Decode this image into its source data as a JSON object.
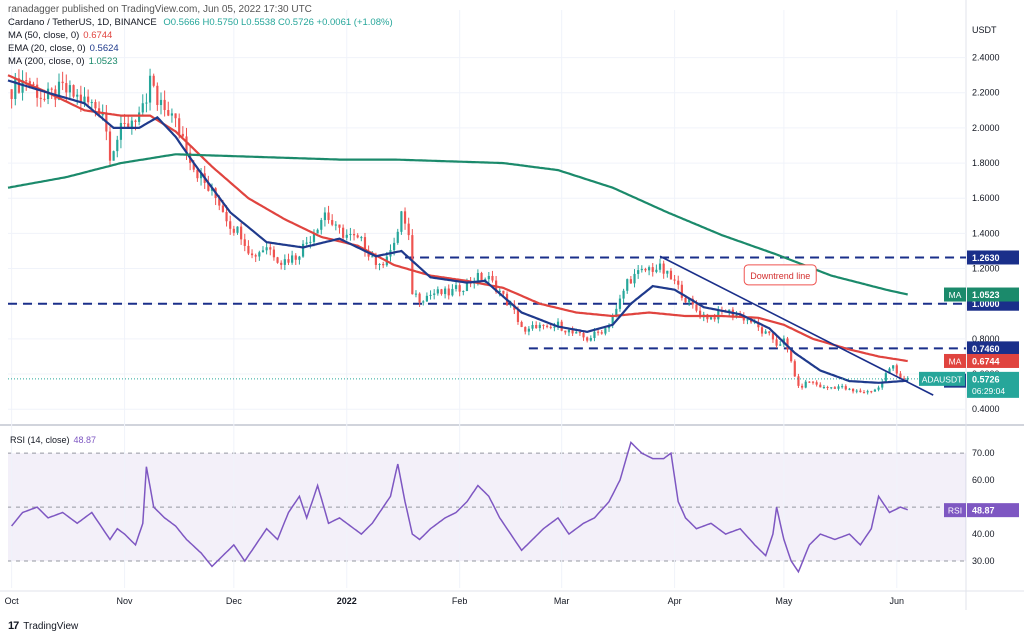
{
  "header": {
    "publisher": "ranadagger published on TradingView.com, Jun 05, 2022 17:30 UTC",
    "symbol": "Cardano / TetherUS, 1D, BINANCE",
    "ohlc": "O0.5666 H0.5750 L0.5538 C0.5726 +0.0061 (+1.08%)",
    "ma50_label": "MA (50, close, 0)",
    "ma50_value": "0.6744",
    "ema_label": "EMA (20, close, 0)",
    "ema_value": "0.5624",
    "ma200_label": "MA (200, close, 0)",
    "ma200_value": "1.0523"
  },
  "footer": {
    "logo_text": "TradingView",
    "logo_mark": "17"
  },
  "chart_data": {
    "type": "candlestick",
    "currency": "USDT",
    "price_axis": {
      "range": [
        0.35,
        2.5
      ],
      "ticks": [
        "2.4000",
        "2.2000",
        "2.0000",
        "1.8000",
        "1.6000",
        "1.4000",
        "1.2000",
        "1.0000",
        "0.8000",
        "0.6000",
        "0.4000"
      ]
    },
    "rsi_axis": {
      "range": [
        20,
        76
      ],
      "ticks": [
        "70.00",
        "60.00",
        "50.00",
        "40.00",
        "30.00"
      ]
    },
    "x_labels": [
      {
        "label": "Oct",
        "day": 0
      },
      {
        "label": "Nov",
        "day": 31
      },
      {
        "label": "Dec",
        "day": 61
      },
      {
        "label": "2022",
        "day": 92
      },
      {
        "label": "Feb",
        "day": 123
      },
      {
        "label": "Mar",
        "day": 151
      },
      {
        "label": "Apr",
        "day": 182
      },
      {
        "label": "May",
        "day": 212
      },
      {
        "label": "Jun",
        "day": 243
      }
    ],
    "day_range": [
      -1,
      262
    ],
    "price_keyframes": [
      [
        0,
        2.22
      ],
      [
        4,
        2.28
      ],
      [
        9,
        2.16
      ],
      [
        14,
        2.22
      ],
      [
        20,
        2.15
      ],
      [
        25,
        2.1
      ],
      [
        27,
        1.86
      ],
      [
        30,
        1.98
      ],
      [
        33,
        2.05
      ],
      [
        35,
        2.08
      ],
      [
        37,
        2.1
      ],
      [
        38,
        2.3
      ],
      [
        40,
        2.12
      ],
      [
        43,
        2.1
      ],
      [
        47,
        1.95
      ],
      [
        50,
        1.78
      ],
      [
        54,
        1.65
      ],
      [
        57,
        1.58
      ],
      [
        60,
        1.45
      ],
      [
        63,
        1.4
      ],
      [
        66,
        1.27
      ],
      [
        70,
        1.33
      ],
      [
        74,
        1.24
      ],
      [
        78,
        1.27
      ],
      [
        82,
        1.38
      ],
      [
        86,
        1.52
      ],
      [
        89,
        1.42
      ],
      [
        93,
        1.38
      ],
      [
        96,
        1.35
      ],
      [
        99,
        1.27
      ],
      [
        101,
        1.2
      ],
      [
        103,
        1.29
      ],
      [
        105,
        1.32
      ],
      [
        107,
        1.52
      ],
      [
        109,
        1.36
      ],
      [
        110,
        1.07
      ],
      [
        112,
        1.03
      ],
      [
        116,
        1.06
      ],
      [
        120,
        1.06
      ],
      [
        124,
        1.1
      ],
      [
        128,
        1.15
      ],
      [
        131,
        1.14
      ],
      [
        134,
        1.07
      ],
      [
        138,
        0.95
      ],
      [
        141,
        0.83
      ],
      [
        144,
        0.88
      ],
      [
        147,
        0.85
      ],
      [
        150,
        0.88
      ],
      [
        154,
        0.83
      ],
      [
        158,
        0.8
      ],
      [
        163,
        0.86
      ],
      [
        166,
        0.96
      ],
      [
        169,
        1.13
      ],
      [
        172,
        1.17
      ],
      [
        175,
        1.2
      ],
      [
        178,
        1.2
      ],
      [
        180,
        1.16
      ],
      [
        182,
        1.12
      ],
      [
        185,
        1.03
      ],
      [
        189,
        0.94
      ],
      [
        192,
        0.92
      ],
      [
        196,
        0.96
      ],
      [
        200,
        0.93
      ],
      [
        203,
        0.9
      ],
      [
        206,
        0.84
      ],
      [
        209,
        0.8
      ],
      [
        210,
        0.77
      ],
      [
        212,
        0.79
      ],
      [
        214,
        0.67
      ],
      [
        216,
        0.52
      ],
      [
        219,
        0.56
      ],
      [
        223,
        0.52
      ],
      [
        227,
        0.53
      ],
      [
        231,
        0.5
      ],
      [
        235,
        0.5
      ],
      [
        238,
        0.52
      ],
      [
        240,
        0.6
      ],
      [
        242,
        0.65
      ],
      [
        244,
        0.58
      ],
      [
        246,
        0.57
      ]
    ],
    "rsi_keyframes": [
      [
        0,
        43
      ],
      [
        3,
        48
      ],
      [
        7,
        50
      ],
      [
        10,
        46
      ],
      [
        14,
        48
      ],
      [
        18,
        44
      ],
      [
        22,
        48
      ],
      [
        25,
        42
      ],
      [
        27,
        38
      ],
      [
        29,
        42
      ],
      [
        31,
        40
      ],
      [
        34,
        36
      ],
      [
        36,
        44
      ],
      [
        37,
        65
      ],
      [
        39,
        50
      ],
      [
        42,
        46
      ],
      [
        45,
        43
      ],
      [
        48,
        38
      ],
      [
        52,
        33
      ],
      [
        55,
        28
      ],
      [
        58,
        32
      ],
      [
        61,
        36
      ],
      [
        64,
        30
      ],
      [
        67,
        36
      ],
      [
        70,
        42
      ],
      [
        73,
        38
      ],
      [
        76,
        48
      ],
      [
        79,
        54
      ],
      [
        81,
        46
      ],
      [
        84,
        58
      ],
      [
        87,
        44
      ],
      [
        90,
        46
      ],
      [
        93,
        43
      ],
      [
        96,
        40
      ],
      [
        99,
        44
      ],
      [
        102,
        50
      ],
      [
        104,
        54
      ],
      [
        106,
        66
      ],
      [
        108,
        52
      ],
      [
        110,
        40
      ],
      [
        112,
        38
      ],
      [
        115,
        42
      ],
      [
        119,
        46
      ],
      [
        122,
        48
      ],
      [
        125,
        52
      ],
      [
        128,
        58
      ],
      [
        131,
        54
      ],
      [
        134,
        46
      ],
      [
        137,
        40
      ],
      [
        140,
        34
      ],
      [
        143,
        38
      ],
      [
        146,
        42
      ],
      [
        150,
        46
      ],
      [
        153,
        40
      ],
      [
        157,
        44
      ],
      [
        160,
        46
      ],
      [
        164,
        52
      ],
      [
        167,
        60
      ],
      [
        170,
        74
      ],
      [
        173,
        70
      ],
      [
        176,
        68
      ],
      [
        179,
        68
      ],
      [
        181,
        70
      ],
      [
        183,
        52
      ],
      [
        185,
        46
      ],
      [
        188,
        42
      ],
      [
        192,
        44
      ],
      [
        196,
        40
      ],
      [
        200,
        42
      ],
      [
        204,
        36
      ],
      [
        207,
        32
      ],
      [
        209,
        40
      ],
      [
        210,
        50
      ],
      [
        212,
        38
      ],
      [
        214,
        30
      ],
      [
        216,
        26
      ],
      [
        219,
        36
      ],
      [
        222,
        40
      ],
      [
        226,
        38
      ],
      [
        230,
        40
      ],
      [
        233,
        36
      ],
      [
        236,
        42
      ],
      [
        238,
        54
      ],
      [
        239,
        52
      ],
      [
        241,
        48
      ],
      [
        244,
        50
      ],
      [
        246,
        49
      ]
    ],
    "series": [
      {
        "name": "MA",
        "color": "#e0443f",
        "value_label": "0.6744",
        "keyframes": [
          [
            -1,
            2.3
          ],
          [
            10,
            2.2
          ],
          [
            20,
            2.1
          ],
          [
            30,
            2.07
          ],
          [
            38,
            2.07
          ],
          [
            45,
            1.98
          ],
          [
            55,
            1.78
          ],
          [
            65,
            1.6
          ],
          [
            75,
            1.48
          ],
          [
            85,
            1.38
          ],
          [
            95,
            1.33
          ],
          [
            105,
            1.22
          ],
          [
            115,
            1.16
          ],
          [
            125,
            1.13
          ],
          [
            135,
            1.09
          ],
          [
            145,
            1.0
          ],
          [
            155,
            0.95
          ],
          [
            165,
            0.93
          ],
          [
            175,
            0.95
          ],
          [
            185,
            0.93
          ],
          [
            195,
            0.93
          ],
          [
            205,
            0.92
          ],
          [
            212,
            0.88
          ],
          [
            220,
            0.8
          ],
          [
            230,
            0.74
          ],
          [
            238,
            0.7
          ],
          [
            246,
            0.674
          ]
        ]
      },
      {
        "name": "EMA",
        "color": "#1f3a8c",
        "value_label": "0.5624",
        "keyframes": [
          [
            -1,
            2.27
          ],
          [
            10,
            2.2
          ],
          [
            20,
            2.14
          ],
          [
            28,
            2.0
          ],
          [
            35,
            2.0
          ],
          [
            40,
            2.06
          ],
          [
            45,
            1.95
          ],
          [
            50,
            1.8
          ],
          [
            60,
            1.52
          ],
          [
            70,
            1.35
          ],
          [
            80,
            1.32
          ],
          [
            90,
            1.37
          ],
          [
            100,
            1.27
          ],
          [
            107,
            1.3
          ],
          [
            115,
            1.15
          ],
          [
            125,
            1.12
          ],
          [
            130,
            1.13
          ],
          [
            140,
            0.95
          ],
          [
            150,
            0.87
          ],
          [
            158,
            0.84
          ],
          [
            165,
            0.88
          ],
          [
            170,
            1.0
          ],
          [
            176,
            1.1
          ],
          [
            182,
            1.08
          ],
          [
            190,
            0.98
          ],
          [
            200,
            0.94
          ],
          [
            208,
            0.86
          ],
          [
            215,
            0.72
          ],
          [
            222,
            0.62
          ],
          [
            230,
            0.56
          ],
          [
            238,
            0.55
          ],
          [
            246,
            0.5624
          ]
        ]
      },
      {
        "name": "MA",
        "color": "#1b8a6b",
        "value_label": "1.0523",
        "keyframes": [
          [
            -1,
            1.66
          ],
          [
            15,
            1.72
          ],
          [
            30,
            1.8
          ],
          [
            45,
            1.85
          ],
          [
            60,
            1.84
          ],
          [
            75,
            1.83
          ],
          [
            90,
            1.82
          ],
          [
            105,
            1.82
          ],
          [
            120,
            1.81
          ],
          [
            135,
            1.8
          ],
          [
            150,
            1.76
          ],
          [
            165,
            1.66
          ],
          [
            180,
            1.52
          ],
          [
            195,
            1.39
          ],
          [
            210,
            1.28
          ],
          [
            225,
            1.16
          ],
          [
            240,
            1.08
          ],
          [
            246,
            1.0523
          ]
        ]
      }
    ],
    "levels": [
      {
        "value": 1.263,
        "label": "1.2630",
        "from_day": 108,
        "to_day": 262
      },
      {
        "value": 1.0,
        "label": "1.0000",
        "from_day": -1,
        "to_day": 262
      },
      {
        "value": 0.746,
        "label": "0.7460",
        "from_day": 142,
        "to_day": 262
      }
    ],
    "trendline": {
      "from": [
        178,
        1.27
      ],
      "to": [
        253,
        0.48
      ],
      "label": "Downtrend line",
      "label_at": [
        211,
        1.17
      ]
    },
    "price_label": {
      "symbol": "ADAUSDT",
      "value": "0.5726",
      "countdown": "06:29:04",
      "color": "#26a69a"
    },
    "rsi": {
      "title": "RSI (14, close)",
      "value_label": "48.87",
      "series_label": "RSI",
      "color": "#7e57c2",
      "band": [
        30,
        70
      ]
    },
    "badges": {
      "ma": "MA",
      "ema": "EMA"
    }
  }
}
